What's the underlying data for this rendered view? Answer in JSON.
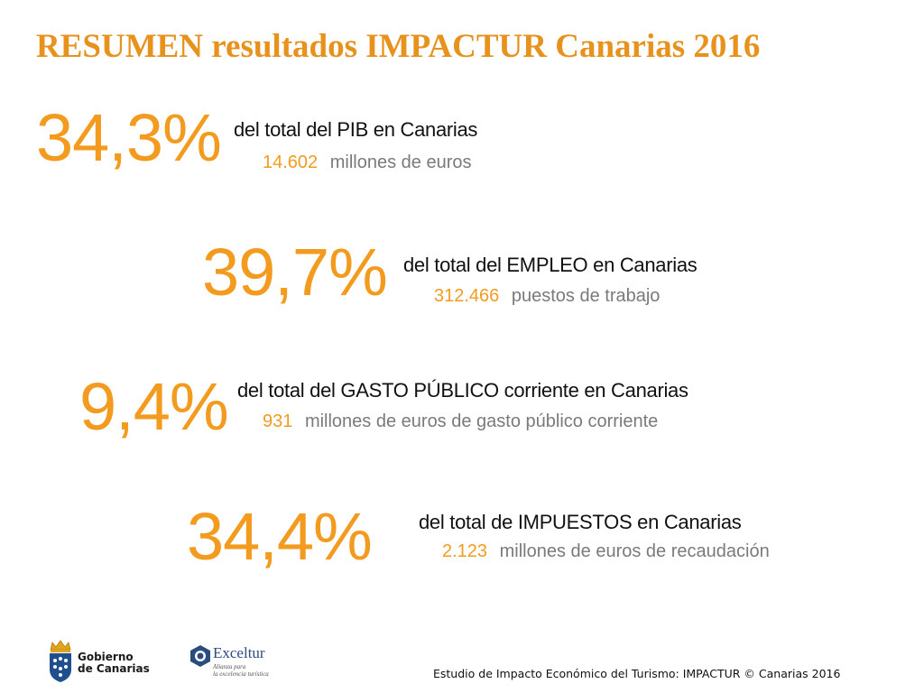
{
  "title": "RESUMEN resultados IMPACTUR Canarias 2016",
  "stats": [
    {
      "percent": "34,3%",
      "description": "del total del PIB en Canarias",
      "value": "14.602",
      "unit": "millones de euros"
    },
    {
      "percent": "39,7%",
      "description": "del total del EMPLEO en Canarias",
      "value": "312.466",
      "unit": "puestos de trabajo"
    },
    {
      "percent": "9,4%",
      "description": "del total del GASTO PÚBLICO corriente en Canarias",
      "value": "931",
      "unit": "millones de euros de gasto público corriente"
    },
    {
      "percent": "34,4%",
      "description": "del total de IMPUESTOS en Canarias",
      "value": "2.123",
      "unit": "millones de euros de recaudación"
    }
  ],
  "logos": {
    "gobierno_line1": "Gobierno",
    "gobierno_line2": "de Canarias",
    "exceltur_name": "Exceltur",
    "exceltur_tag_line1": "Alianza para",
    "exceltur_tag_line2": "la excelencia turística"
  },
  "footer": {
    "text": "Estudio de Impacto Económico del Turismo: IMPACTUR © Canarias 2016"
  },
  "colors": {
    "accent": "#F29B1F",
    "title": "#E8921E",
    "subtext": "#7a7a7a"
  }
}
